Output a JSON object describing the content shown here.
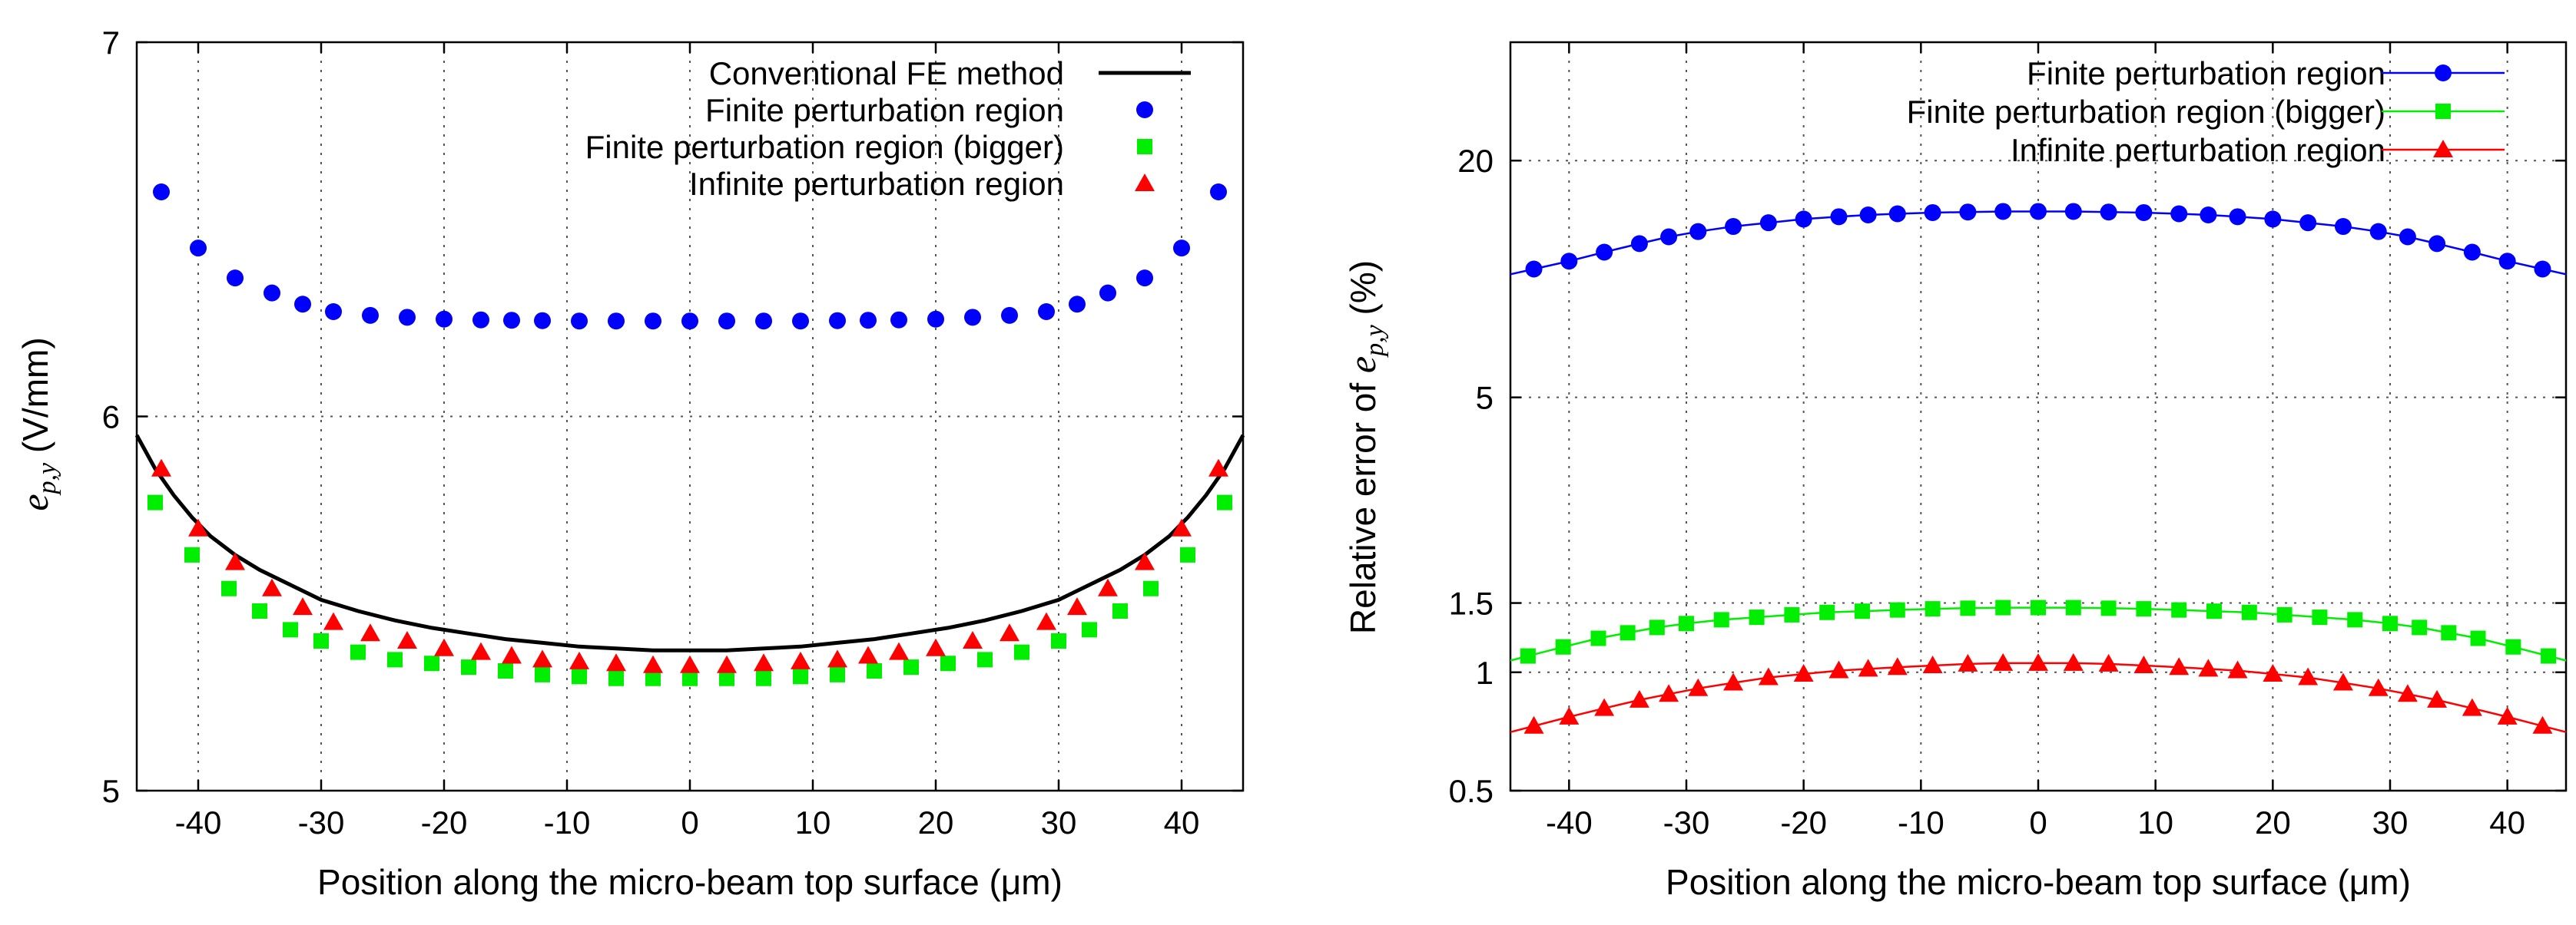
{
  "chart_data": [
    {
      "type": "scatter",
      "xlabel": "Position along the micro-beam top surface (μm)",
      "ylabel_main": "e",
      "ylabel_sub": "p,y",
      "ylabel_unit": " (V/mm)",
      "xlim": [
        -45,
        45
      ],
      "ylim": [
        5,
        7
      ],
      "xticks": [
        -40,
        -30,
        -20,
        -10,
        0,
        10,
        20,
        30,
        40
      ],
      "yticks": [
        5,
        6,
        7
      ],
      "xtick_labels": [
        "-40",
        "-30",
        "-20",
        "-10",
        "0",
        "10",
        "20",
        "30",
        "40"
      ],
      "ytick_labels": [
        "5",
        "6",
        "7"
      ],
      "legend_position": "top-right",
      "series": [
        {
          "name": "Conventional FE method",
          "style": "line",
          "color": "#000000",
          "x": [
            -45,
            -43.5,
            -42,
            -40.5,
            -39,
            -37,
            -35,
            -32.5,
            -30,
            -27,
            -24,
            -21,
            -18,
            -15,
            -12,
            -9,
            -6,
            -3,
            0,
            3,
            6,
            9,
            12,
            15,
            18,
            21,
            24,
            27,
            30,
            32.5,
            35,
            37,
            39,
            40.5,
            42,
            43.5,
            45
          ],
          "y": [
            5.95,
            5.86,
            5.79,
            5.73,
            5.68,
            5.63,
            5.59,
            5.55,
            5.51,
            5.48,
            5.455,
            5.435,
            5.42,
            5.405,
            5.395,
            5.385,
            5.38,
            5.375,
            5.375,
            5.375,
            5.38,
            5.385,
            5.395,
            5.405,
            5.42,
            5.435,
            5.455,
            5.48,
            5.51,
            5.55,
            5.59,
            5.63,
            5.68,
            5.73,
            5.79,
            5.86,
            5.95
          ]
        },
        {
          "name": "Finite perturbation region",
          "style": "circle",
          "color": "#0000ff",
          "x": [
            -43,
            -40,
            -37,
            -34,
            -31.5,
            -29,
            -26,
            -23,
            -20,
            -17,
            -14.5,
            -12,
            -9,
            -6,
            -3,
            0,
            3,
            6,
            9,
            12,
            14.5,
            17,
            20,
            23,
            26,
            29,
            31.5,
            34,
            37,
            40,
            43
          ],
          "y": [
            6.6,
            6.45,
            6.37,
            6.33,
            6.3,
            6.28,
            6.27,
            6.265,
            6.26,
            6.258,
            6.257,
            6.256,
            6.255,
            6.255,
            6.255,
            6.255,
            6.255,
            6.255,
            6.255,
            6.256,
            6.257,
            6.258,
            6.26,
            6.265,
            6.27,
            6.28,
            6.3,
            6.33,
            6.37,
            6.45,
            6.6
          ]
        },
        {
          "name": "Finite perturbation region (bigger)",
          "style": "square",
          "color": "#00ee00",
          "x": [
            -43.5,
            -40.5,
            -37.5,
            -35,
            -32.5,
            -30,
            -27,
            -24,
            -21,
            -18,
            -15,
            -12,
            -9,
            -6,
            -3,
            0,
            3,
            6,
            9,
            12,
            15,
            18,
            21,
            24,
            27,
            30,
            32.5,
            35,
            37.5,
            40.5,
            43.5
          ],
          "y": [
            5.77,
            5.63,
            5.54,
            5.48,
            5.43,
            5.4,
            5.37,
            5.35,
            5.34,
            5.33,
            5.32,
            5.31,
            5.305,
            5.3,
            5.3,
            5.3,
            5.3,
            5.3,
            5.305,
            5.31,
            5.32,
            5.33,
            5.34,
            5.35,
            5.37,
            5.4,
            5.43,
            5.48,
            5.54,
            5.63,
            5.77
          ]
        },
        {
          "name": "Infinite perturbation region",
          "style": "triangle",
          "color": "#ff0000",
          "x": [
            -43,
            -40,
            -37,
            -34,
            -31.5,
            -29,
            -26,
            -23,
            -20,
            -17,
            -14.5,
            -12,
            -9,
            -6,
            -3,
            0,
            3,
            6,
            9,
            12,
            14.5,
            17,
            20,
            23,
            26,
            29,
            31.5,
            34,
            37,
            40,
            43
          ],
          "y": [
            5.86,
            5.7,
            5.61,
            5.54,
            5.49,
            5.45,
            5.42,
            5.4,
            5.38,
            5.37,
            5.36,
            5.35,
            5.345,
            5.34,
            5.335,
            5.335,
            5.335,
            5.34,
            5.345,
            5.35,
            5.36,
            5.37,
            5.38,
            5.4,
            5.42,
            5.45,
            5.49,
            5.54,
            5.61,
            5.7,
            5.86
          ]
        }
      ]
    },
    {
      "type": "line",
      "yscale": "log",
      "xlabel": "Position along the micro-beam top surface (μm)",
      "ylabel_main": "Relative error of ",
      "ylabel_var": "e",
      "ylabel_sub": "p,y",
      "ylabel_unit": " (%)",
      "xlim": [
        -45,
        45
      ],
      "ylim": [
        0.5,
        40
      ],
      "xticks": [
        -40,
        -30,
        -20,
        -10,
        0,
        10,
        20,
        30,
        40
      ],
      "yticks": [
        0.5,
        1,
        1.5,
        5,
        20
      ],
      "xtick_labels": [
        "-40",
        "-30",
        "-20",
        "-10",
        "0",
        "10",
        "20",
        "30",
        "40"
      ],
      "ytick_labels": [
        "0.5",
        "1",
        "1.5",
        "5",
        "20"
      ],
      "legend_position": "top-right",
      "series": [
        {
          "name": "Finite perturbation region",
          "style": "circle",
          "color": "#0000ff",
          "x": [
            -43,
            -40,
            -37,
            -34,
            -31.5,
            -29,
            -26,
            -23,
            -20,
            -17,
            -14.5,
            -12,
            -9,
            -6,
            -3,
            0,
            3,
            6,
            9,
            12,
            14.5,
            17,
            20,
            23,
            26,
            29,
            31.5,
            34,
            37,
            40,
            43
          ],
          "y": [
            10.6,
            11.1,
            11.7,
            12.3,
            12.8,
            13.2,
            13.6,
            13.9,
            14.2,
            14.4,
            14.55,
            14.65,
            14.75,
            14.8,
            14.85,
            14.85,
            14.85,
            14.8,
            14.75,
            14.65,
            14.55,
            14.4,
            14.2,
            13.9,
            13.6,
            13.2,
            12.8,
            12.3,
            11.7,
            11.1,
            10.6
          ]
        },
        {
          "name": "Finite perturbation region (bigger)",
          "style": "square",
          "color": "#00ee00",
          "x": [
            -43.5,
            -40.5,
            -37.5,
            -35,
            -32.5,
            -30,
            -27,
            -24,
            -21,
            -18,
            -15,
            -12,
            -9,
            -6,
            -3,
            0,
            3,
            6,
            9,
            12,
            15,
            18,
            21,
            24,
            27,
            30,
            32.5,
            35,
            37.5,
            40.5,
            43.5
          ],
          "y": [
            1.1,
            1.16,
            1.22,
            1.26,
            1.3,
            1.33,
            1.36,
            1.38,
            1.4,
            1.42,
            1.43,
            1.44,
            1.45,
            1.455,
            1.46,
            1.46,
            1.46,
            1.455,
            1.45,
            1.44,
            1.43,
            1.42,
            1.4,
            1.38,
            1.36,
            1.33,
            1.3,
            1.26,
            1.22,
            1.16,
            1.1
          ]
        },
        {
          "name": "Infinite perturbation region",
          "style": "triangle",
          "color": "#ff0000",
          "x": [
            -43,
            -40,
            -37,
            -34,
            -31.5,
            -29,
            -26,
            -23,
            -20,
            -17,
            -14.5,
            -12,
            -9,
            -6,
            -3,
            0,
            3,
            6,
            9,
            12,
            14.5,
            17,
            20,
            23,
            26,
            29,
            31.5,
            34,
            37,
            40,
            43
          ],
          "y": [
            0.73,
            0.77,
            0.81,
            0.85,
            0.88,
            0.91,
            0.94,
            0.97,
            0.99,
            1.01,
            1.02,
            1.03,
            1.04,
            1.05,
            1.055,
            1.055,
            1.055,
            1.05,
            1.04,
            1.03,
            1.02,
            1.01,
            0.99,
            0.97,
            0.94,
            0.91,
            0.88,
            0.85,
            0.81,
            0.77,
            0.73
          ]
        }
      ]
    }
  ]
}
